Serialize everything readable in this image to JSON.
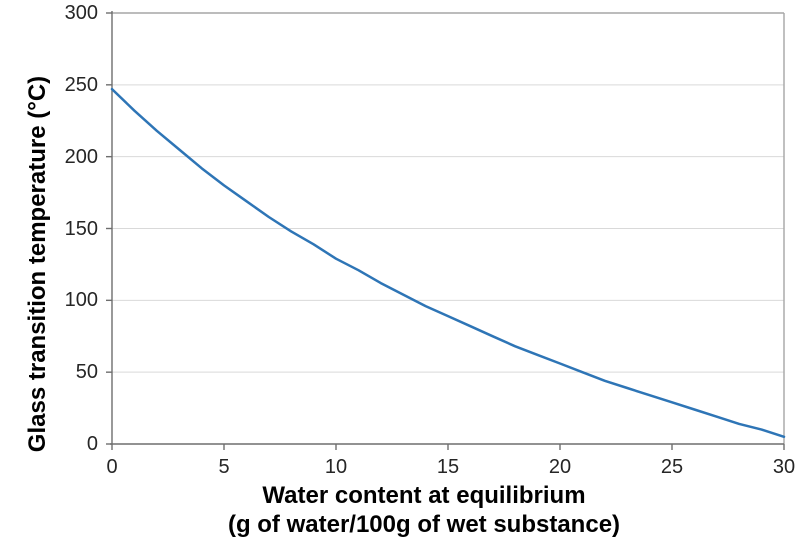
{
  "chart_data": {
    "type": "line",
    "title": "",
    "legend": "none",
    "grid": "horizontal",
    "x_axis": {
      "title_line1": "Water content at equilibrium",
      "title_line2": "(g of water/100g of wet substance)",
      "range": [
        0,
        30
      ],
      "ticks": [
        0,
        5,
        10,
        15,
        20,
        25,
        30
      ]
    },
    "y_axis": {
      "title": "Glass transition temperature (°C)",
      "range": [
        0,
        300
      ],
      "ticks": [
        0,
        50,
        100,
        150,
        200,
        250,
        300
      ]
    },
    "series": [
      {
        "color": "#2E75B6",
        "stroke_width": 2.5,
        "x": [
          0,
          1,
          2,
          3,
          4,
          5,
          6,
          7,
          8,
          9,
          10,
          11,
          12,
          13,
          14,
          15,
          16,
          17,
          18,
          19,
          20,
          21,
          22,
          23,
          24,
          25,
          26,
          27,
          28,
          29,
          30
        ],
        "y": [
          247,
          232,
          218,
          205,
          192,
          180,
          169,
          158,
          148,
          139,
          129,
          121,
          112,
          104,
          96,
          89,
          82,
          75,
          68,
          62,
          56,
          50,
          44,
          39,
          34,
          29,
          24,
          19,
          14,
          10,
          5
        ]
      }
    ],
    "colors": {
      "background": "#FFFFFF",
      "line": "#2E75B6",
      "gridline": "#D9D9D9",
      "axis_line": "#6E6E6E",
      "plot_border": "#A6A6A6",
      "tick_label": "#262626",
      "axis_title": "#000000"
    }
  }
}
